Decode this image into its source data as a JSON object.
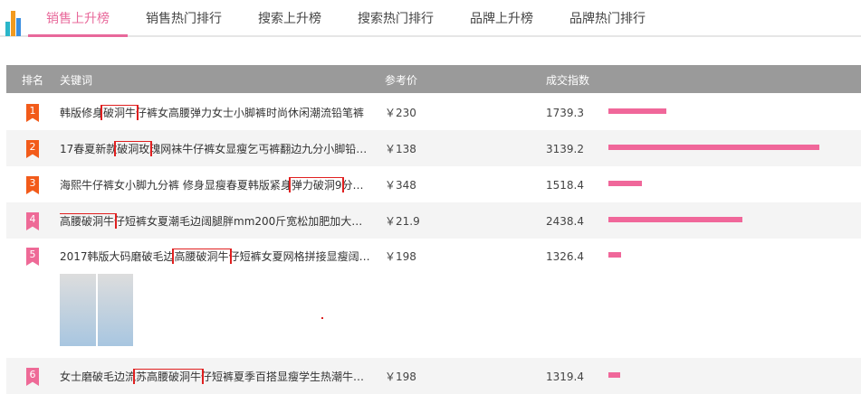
{
  "colors": {
    "accent": "#e8689a",
    "bar": "#f0679a",
    "rank_top": "#f25b1a",
    "rank_other": "#ee6a97",
    "header_bg": "#9a9a9a"
  },
  "tabs": [
    {
      "label": "销售上升榜",
      "active": true
    },
    {
      "label": "销售热门排行"
    },
    {
      "label": "搜索上升榜"
    },
    {
      "label": "搜索热门排行"
    },
    {
      "label": "品牌上升榜"
    },
    {
      "label": "品牌热门排行"
    }
  ],
  "table": {
    "headers": {
      "rank": "排名",
      "keyword": "关键词",
      "price": "参考价",
      "index": "成交指数"
    },
    "rows": [
      {
        "rank": "1",
        "pre": "韩版修身",
        "hl": "破洞牛",
        "post": "仔裤女高腰弹力女士小脚裤时尚休闲潮流铅笔裤",
        "price": "￥230",
        "index": 1739.3
      },
      {
        "rank": "2",
        "pre": "17春夏新款",
        "hl": "破洞玫",
        "post": "瑰网袜牛仔裤女显瘦乞丐裤翻边九分小脚铅…",
        "price": "￥138",
        "index": 3139.2
      },
      {
        "rank": "3",
        "pre": "海熙牛仔裤女小脚九分裤 修身显瘦春夏韩版紧身",
        "hl": "弹力破洞9",
        "post": "分…",
        "price": "￥348",
        "index": 1518.4
      },
      {
        "rank": "4",
        "pre": "",
        "hl": "高腰破洞牛",
        "post": "仔短裤女夏潮毛边阔腿胖mm200斤宽松加肥加大…",
        "price": "￥21.9",
        "index": 2438.4
      },
      {
        "rank": "5",
        "pre": "2017韩版大码磨破毛边",
        "hl": "高腰破洞牛",
        "post": "仔短裤女夏网格拼接显瘦阔…",
        "price": "￥198",
        "index": 1326.4
      },
      {
        "rank": "6",
        "pre": "女士磨破毛边流",
        "hl": "苏高腰破洞牛",
        "post": "仔短裤夏季百搭显瘦学生热潮牛…",
        "price": "￥198",
        "index": 1319.4
      }
    ]
  }
}
